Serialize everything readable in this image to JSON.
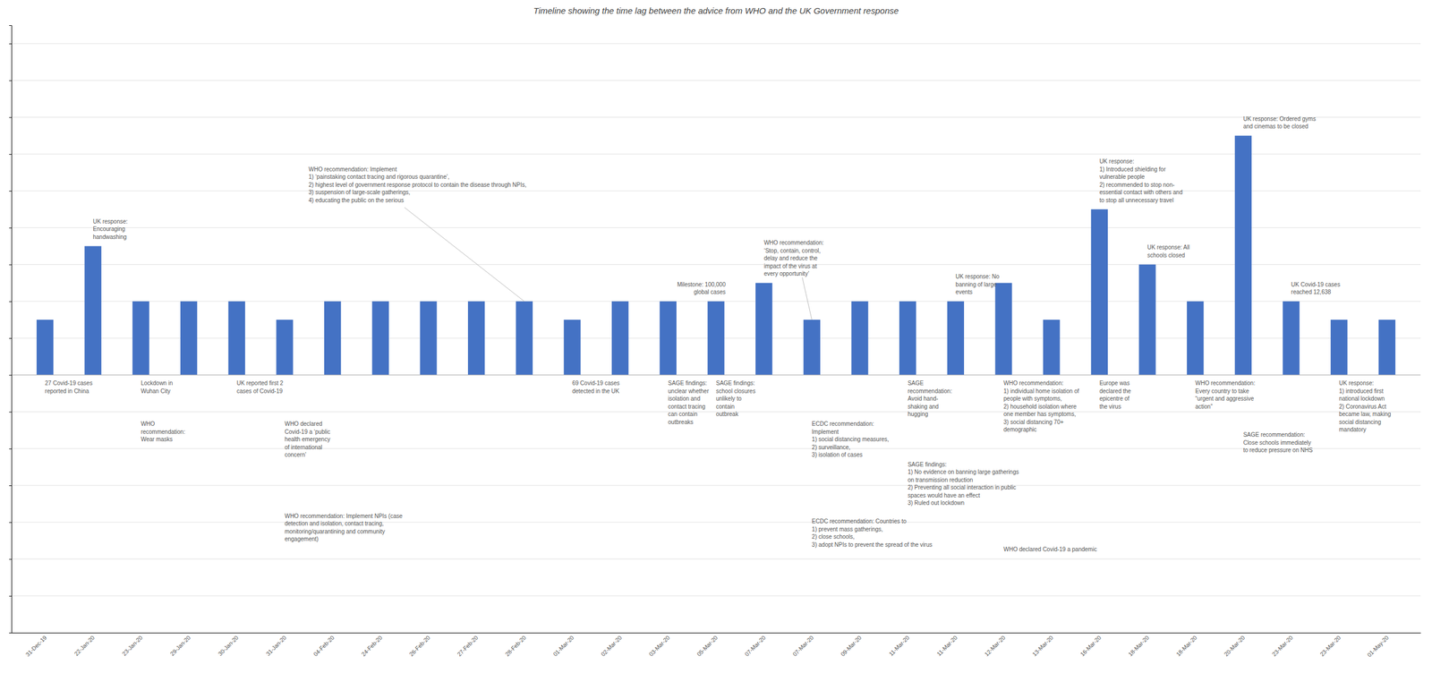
{
  "chart_data": {
    "type": "bar",
    "title": "Timeline showing the time lag between the advice from WHO and the UK Government response",
    "categories": [
      "31-Dec-19",
      "22-Jan-20",
      "23-Jan-20",
      "29-Jan-20",
      "30-Jan-20",
      "31-Jan-20",
      "04-Feb-20",
      "24-Feb-20",
      "26-Feb-20",
      "27-Feb-20",
      "28-Feb-20",
      "01-Mar-20",
      "02-Mar-20",
      "03-Mar-20",
      "05-Mar-20",
      "07-Mar-20",
      "07-Mar-20",
      "09-Mar-20",
      "11-Mar-20",
      "11-Mar-20",
      "12-Mar-20",
      "13-Mar-20",
      "16-Mar-20",
      "18-Mar-20",
      "18-Mar-20",
      "20-Mar-20",
      "23-Mar-20",
      "23-Mar-20",
      "01-May-20"
    ],
    "values": [
      1.5,
      3.5,
      2.0,
      2.0,
      2.0,
      1.5,
      2.0,
      2.0,
      2.0,
      2.0,
      2.0,
      1.5,
      2.0,
      2.0,
      2.0,
      2.5,
      1.5,
      2.0,
      2.0,
      2.0,
      2.5,
      1.5,
      4.5,
      3.0,
      2.0,
      6.5,
      2.0,
      1.5,
      1.5
    ],
    "color": "#4472c4",
    "ylim": [
      -7.0,
      9.5
    ],
    "yticks": [
      -6,
      -5,
      -4,
      -3,
      -2,
      -1,
      0,
      1,
      2,
      3,
      4,
      5,
      6,
      7,
      8,
      9
    ],
    "grid": true,
    "tick_labels": "x",
    "annotations": [
      "UK response:\nEncouraging\nhandwashing",
      "WHO recommendation: Implement\n1) ‘painstaking contact tracing and rigorous quarantine’,\n2) highest level of government response protocol to contain the disease through NPIs,\n3) suspension of large-scale gatherings,\n4) educating the public on the serious",
      "Milestone: 100,000\nglobal cases",
      "WHO recommendation:\n‘Stop, contain, control,\ndelay and reduce the\nimpact of the virus at\nevery opportunity’",
      "UK response: No\nbanning of large\nevents",
      "UK response:\n1) Introduced shielding for\nvulnerable people\n2) recommended to stop non-\nessential contact with others and\nto stop all unnecessary travel",
      "UK response: All\nschools closed",
      "UK response: Ordered gyms\nand cinemas to be closed",
      "UK Covid-19 cases\nreached 12,638",
      "27 Covid-19 cases\nreported in China",
      "Lockdown in\nWuhan City",
      "WHO\nrecommendation:\nWear masks",
      "UK reported first 2\ncases of Covid-19",
      "WHO declared\nCovid-19 a ‘public\nhealth emergency\nof international\nconcern’",
      "WHO recommendation: Implement NPIs (case\ndetection and isolation, contact tracing,\nmonitoring/quarantining and community\nengagement)",
      "69 Covid-19 cases\ndetected in the UK",
      "SAGE findings:\nunclear whether\nisolation and\ncontact tracing\ncan contain\noutbreaks",
      "SAGE findings:\nschool closures\nunlikely to\ncontain\noutbreak",
      "ECDC recommendation:\nImplement\n1) social distancing measures,\n2) surveillance,\n3) isolation of cases",
      "ECDC recommendation: Countries to\n1) prevent mass gatherings,\n2) close schools,\n3) adopt NPIs to prevent the spread of the virus",
      "SAGE\nrecommendation:\nAvoid hand-\nshaking and\nhugging",
      "SAGE findings:\n1) No evidence on banning large gatherings\non transmission reduction\n2) Preventing all social interaction in public\nspaces would have an effect\n3) Ruled out lockdown",
      "WHO recommendation:\n1) individual home isolation of\npeople with symptoms,\n2) household isolation where\none member has symptoms,\n3) social distancing 70+\ndemographic",
      "Europe was\ndeclared the\nepicentre of\nthe virus",
      "WHO recommendation:\nEvery country to take\n“urgent and aggressive\naction”",
      "WHO declared Covid-19 a pandemic",
      "SAGE recommendation:\nClose schools immediately\nto reduce pressure on NHS",
      "UK response:\n1) introduced first\nnational lockdown\n2) Coronavirus Act\nbecame law, making\nsocial distancing\nmandatory"
    ]
  }
}
